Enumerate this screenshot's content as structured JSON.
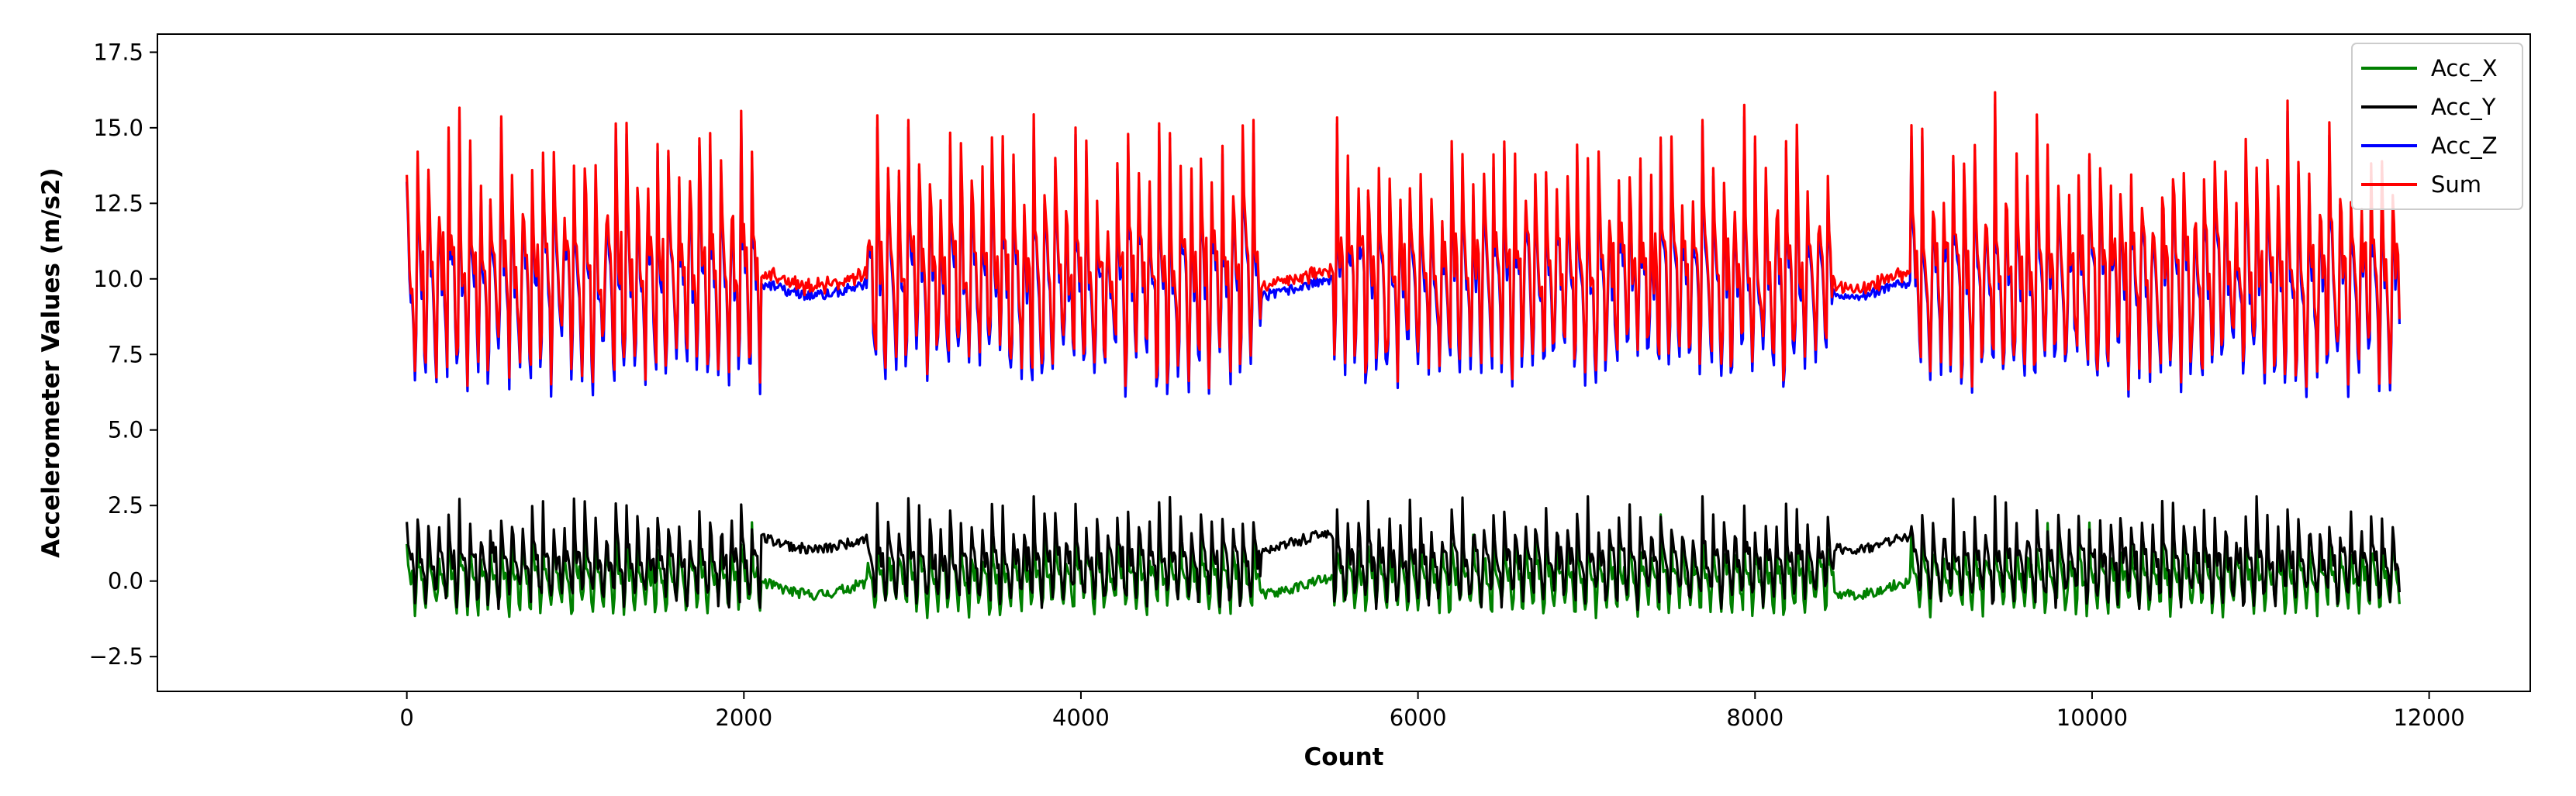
{
  "chart_data": {
    "type": "line",
    "title": "",
    "xlabel": "Count",
    "ylabel": "Accelerometer Values (m/s2)",
    "xlim": [
      -1480,
      12600
    ],
    "ylim": [
      -3.65,
      18.1
    ],
    "xticks": [
      0,
      2000,
      4000,
      6000,
      8000,
      10000,
      12000
    ],
    "xtick_labels": [
      "0",
      "2000",
      "4000",
      "6000",
      "8000",
      "10000",
      "12000"
    ],
    "yticks": [
      -2.5,
      0.0,
      2.5,
      5.0,
      7.5,
      10.0,
      12.5,
      15.0,
      17.5
    ],
    "ytick_labels": [
      "−2.5",
      "0.0",
      "2.5",
      "5.0",
      "7.5",
      "10.0",
      "12.5",
      "15.0",
      "17.5"
    ],
    "grid": false,
    "legend_position": "top-right",
    "x_range": [
      0,
      11830
    ],
    "activity_segments": [
      {
        "start": 0,
        "end": 2100,
        "state": "active"
      },
      {
        "start": 2100,
        "end": 2730,
        "state": "still"
      },
      {
        "start": 2730,
        "end": 5070,
        "state": "active"
      },
      {
        "start": 5070,
        "end": 5500,
        "state": "still"
      },
      {
        "start": 5500,
        "end": 8470,
        "state": "active"
      },
      {
        "start": 8470,
        "end": 8920,
        "state": "still"
      },
      {
        "start": 8920,
        "end": 11830,
        "state": "active"
      }
    ],
    "series": [
      {
        "name": "Acc_X",
        "color": "#008000",
        "active_mean": 0.0,
        "active_amplitude": 1.1,
        "still_mean": -0.2,
        "min": -2.7,
        "max": 2.2
      },
      {
        "name": "Acc_Y",
        "color": "#000000",
        "active_mean": 0.5,
        "active_amplitude": 1.3,
        "still_mean": 1.3,
        "min": -2.5,
        "max": 2.8
      },
      {
        "name": "Acc_Z",
        "color": "#0000ff",
        "active_mean": 9.6,
        "active_amplitude": 3.2,
        "still_mean": 9.7,
        "min": 4.8,
        "max": 16.9
      },
      {
        "name": "Sum",
        "color": "#ff0000",
        "active_mean": 9.9,
        "active_amplitude": 3.2,
        "still_mean": 9.9,
        "min": 4.9,
        "max": 17.0
      }
    ]
  }
}
